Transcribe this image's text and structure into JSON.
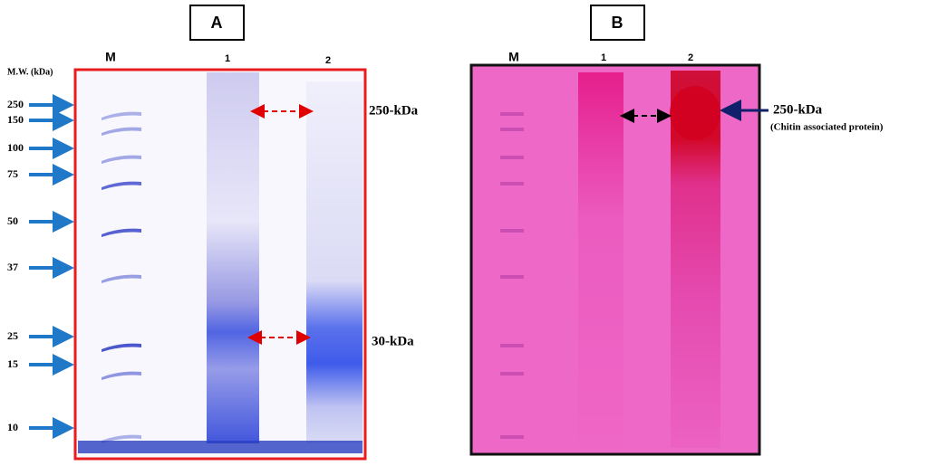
{
  "panels": [
    {
      "label": "A",
      "mw_title": "M.W. (kDa)",
      "markers": [
        250,
        150,
        100,
        75,
        50,
        37,
        25,
        15,
        10
      ],
      "lanes": [
        "M",
        "1",
        "2"
      ],
      "annotations": [
        "250-kDa",
        "30-kDa"
      ]
    },
    {
      "label": "B",
      "lanes": [
        "M",
        "1",
        "2"
      ],
      "annotations": [
        "250-kDa",
        "(Chitin associated protein)"
      ]
    }
  ]
}
